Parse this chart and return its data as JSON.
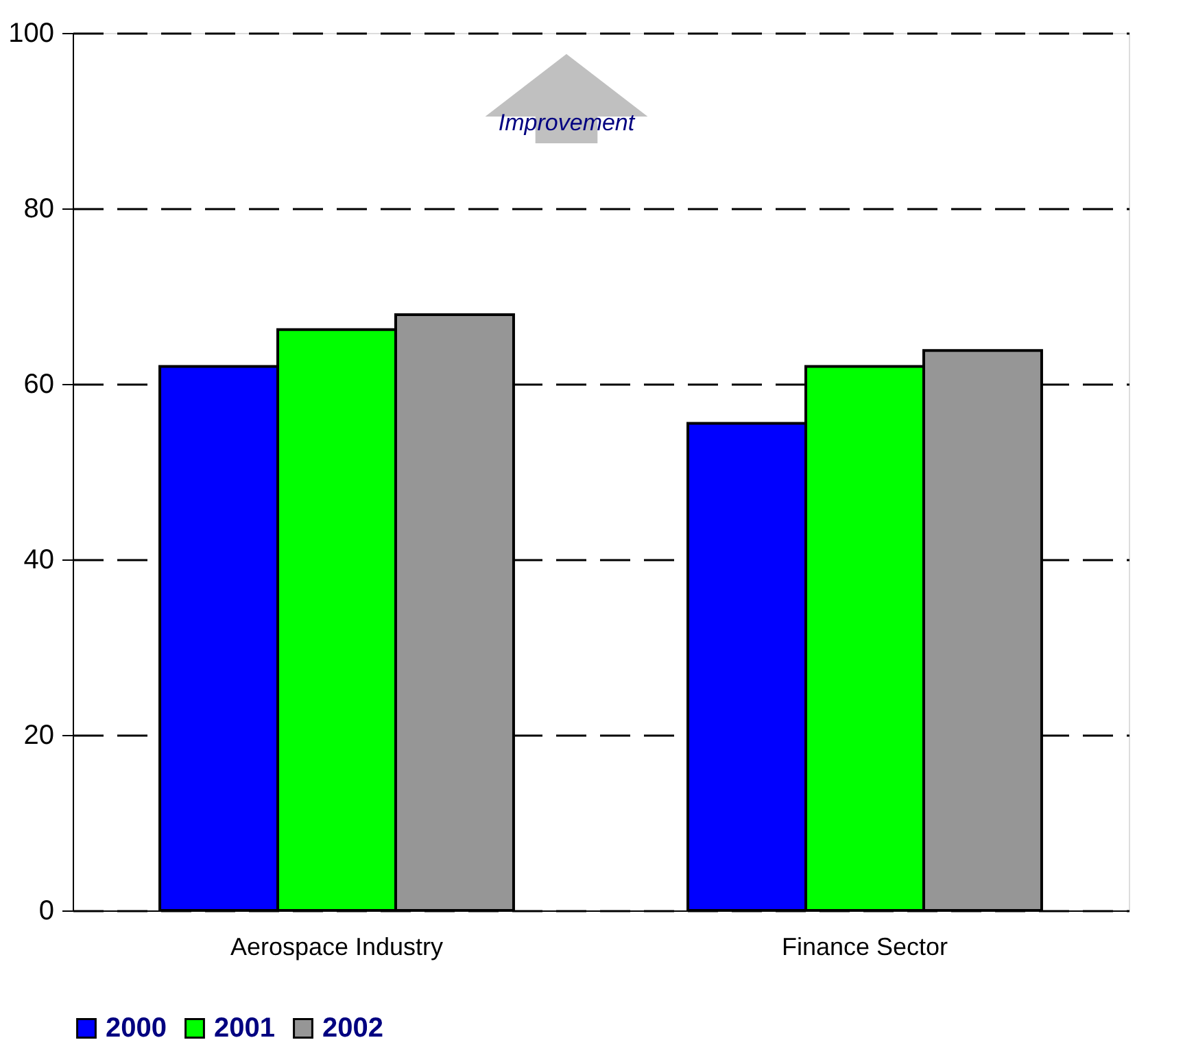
{
  "chart_data": {
    "type": "bar",
    "categories": [
      "Aerospace Industry",
      "Finance Sector"
    ],
    "series": [
      {
        "name": "2000",
        "color": "#0000ff",
        "values": [
          62.0,
          55.5
        ]
      },
      {
        "name": "2001",
        "color": "#00ff00",
        "values": [
          66.2,
          62.0
        ]
      },
      {
        "name": "2002",
        "color": "#969696",
        "values": [
          67.9,
          63.8
        ]
      }
    ],
    "ylim": [
      0,
      100
    ],
    "yticks": [
      0,
      20,
      40,
      60,
      80,
      100
    ],
    "grid": "y",
    "legend": "bottom",
    "annotations": [
      "Improvement"
    ]
  }
}
